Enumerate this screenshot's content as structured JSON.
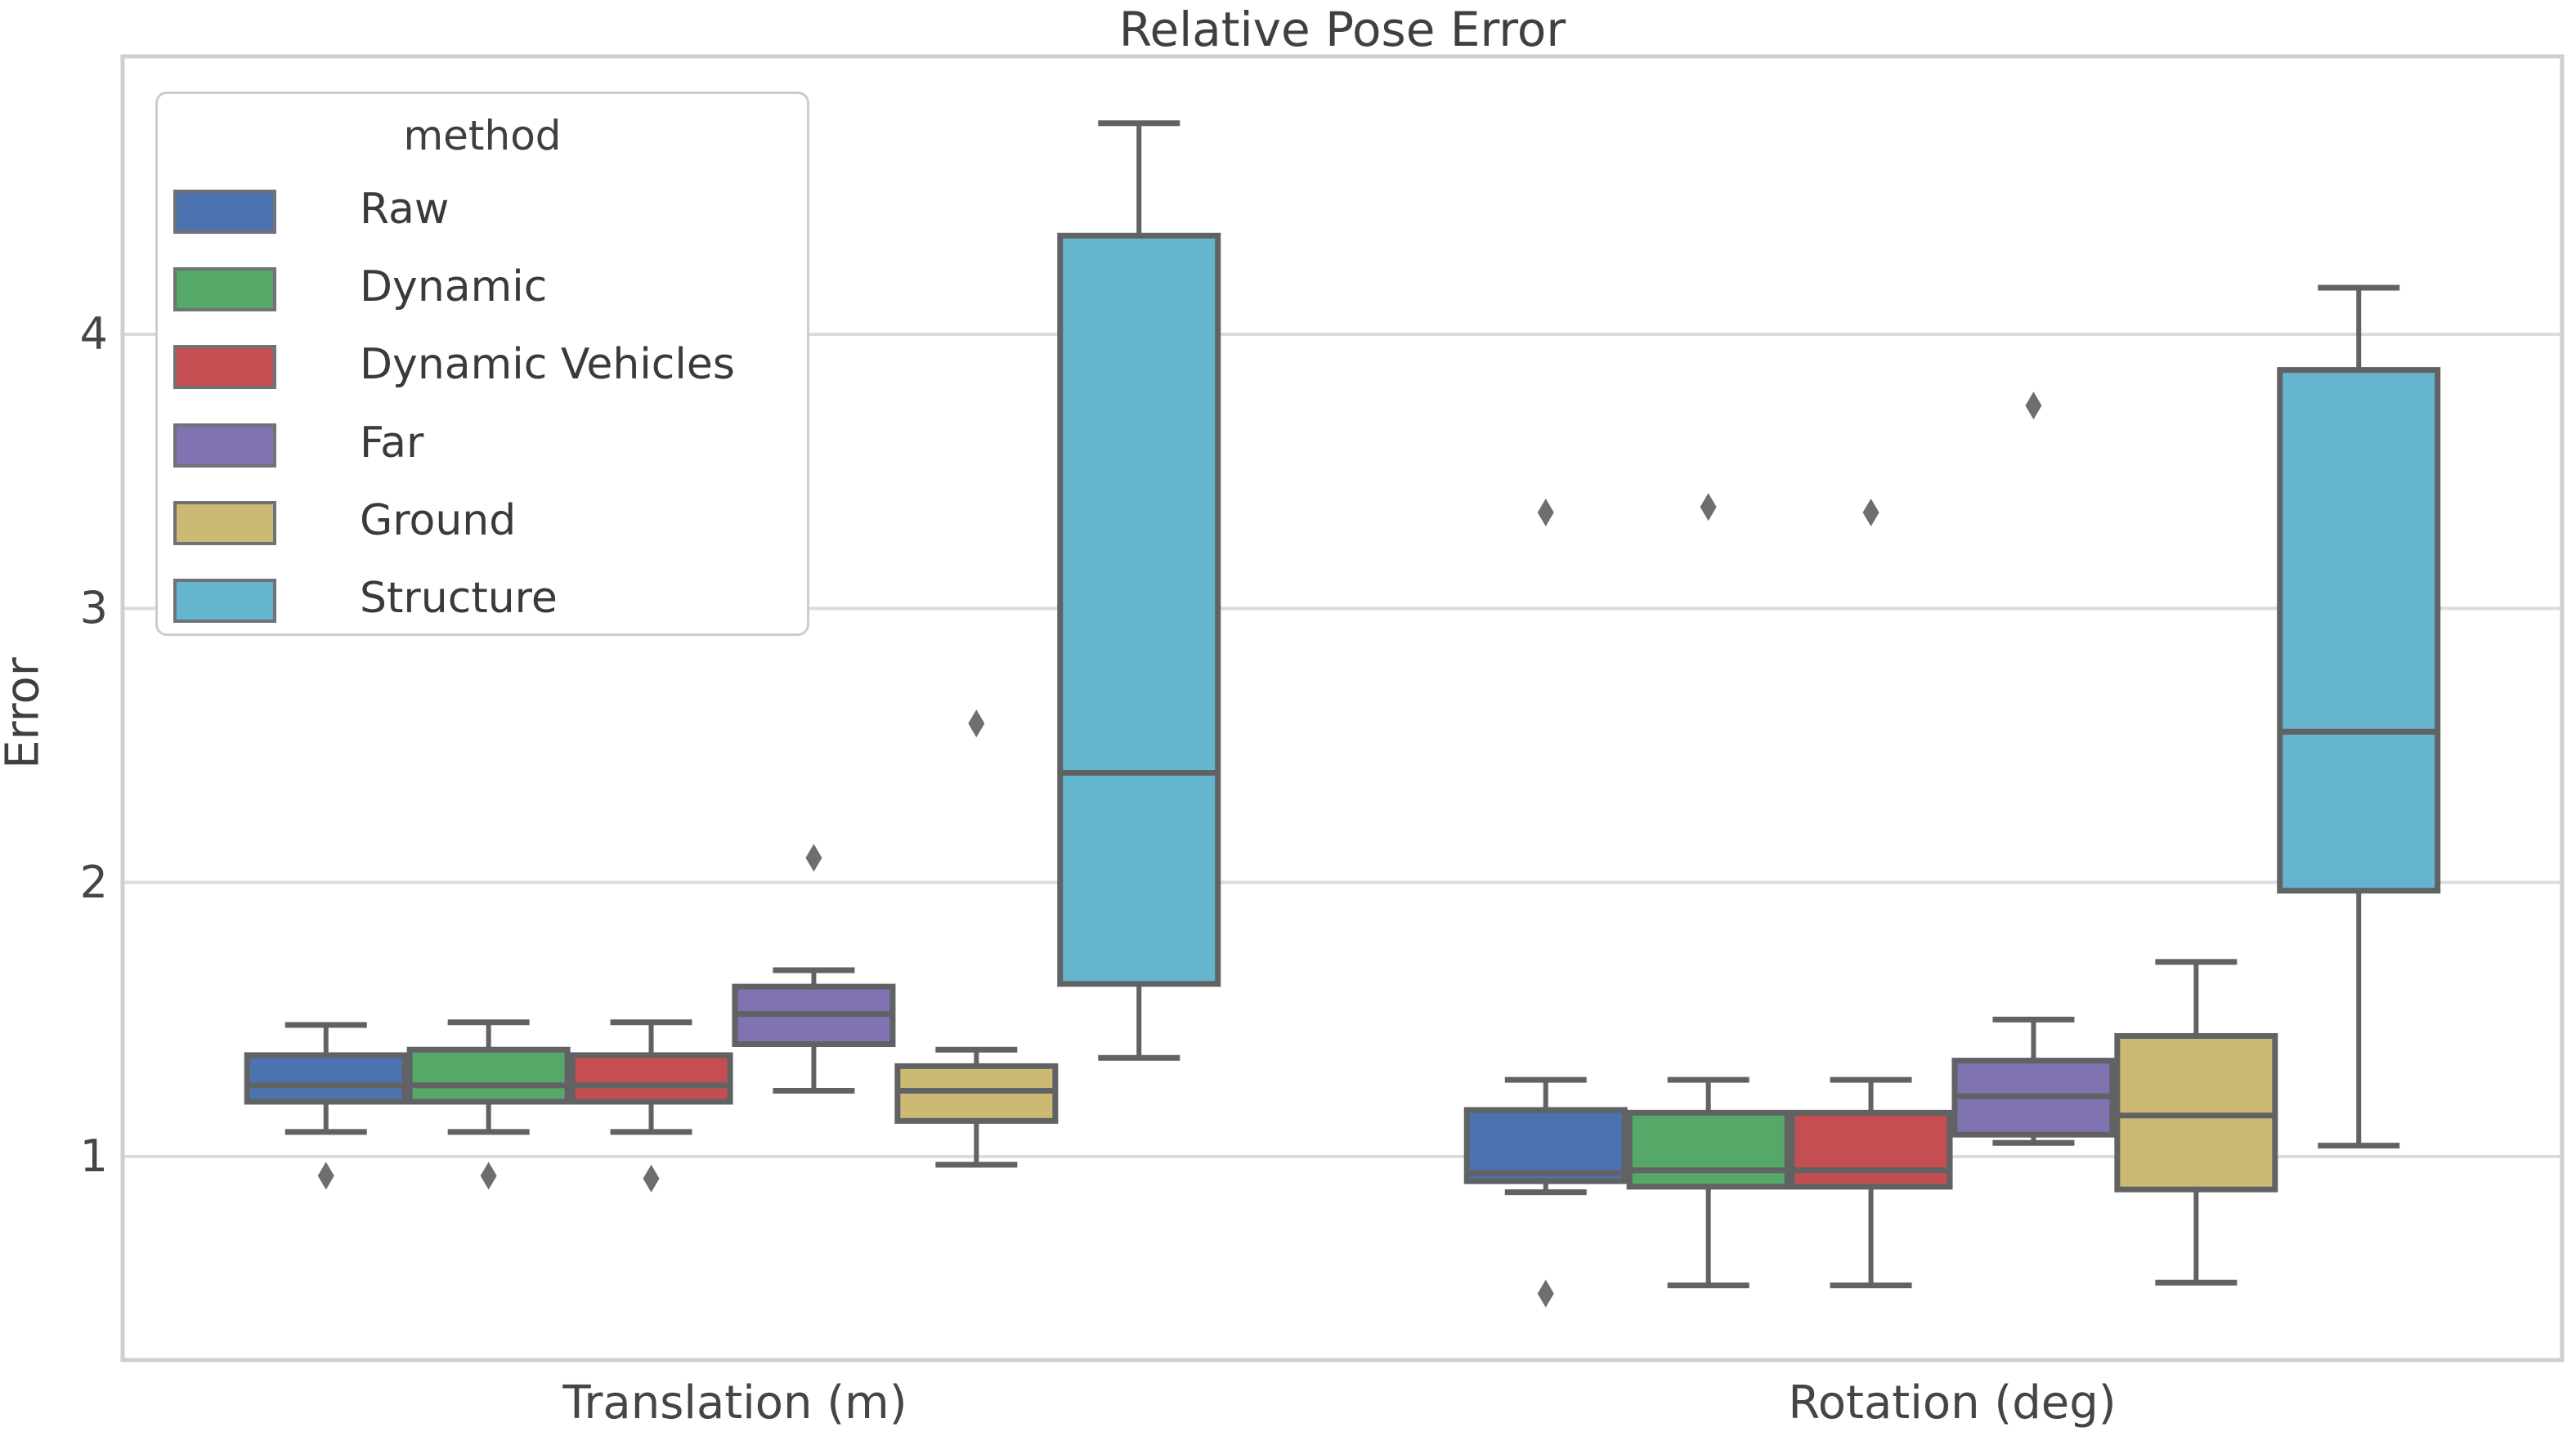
{
  "style": {
    "edge_color": "#606264",
    "flier_color": "#6e6e70",
    "grid_color": "#dcdcdc",
    "spine_color": "#cfcfd1",
    "text_color": "#3f3f3f",
    "background": "#ffffff"
  },
  "legend": {
    "title": "method",
    "items": [
      {
        "label": "Raw",
        "color": "#4C72B0"
      },
      {
        "label": "Dynamic",
        "color": "#55A868"
      },
      {
        "label": "Dynamic Vehicles",
        "color": "#C44E52"
      },
      {
        "label": "Far",
        "color": "#8172B2"
      },
      {
        "label": "Ground",
        "color": "#CCB974"
      },
      {
        "label": "Structure",
        "color": "#64B5CD"
      }
    ]
  },
  "chart_data": {
    "type": "boxplot",
    "title": "Relative Pose Error",
    "xlabel": "",
    "ylabel": "Error",
    "categories": [
      "Translation (m)",
      "Rotation (deg)"
    ],
    "yticks": [
      1,
      2,
      3,
      4
    ],
    "ylim": [
      0.26,
      5.01
    ],
    "grid": "horizontal",
    "legend_position": "upper-left",
    "series": [
      {
        "name": "Raw",
        "color": "#4C72B0",
        "boxes": [
          {
            "whislo": 1.09,
            "q1": 1.2,
            "med": 1.26,
            "q3": 1.37,
            "whishi": 1.48,
            "fliers": [
              0.93
            ]
          },
          {
            "whislo": 0.87,
            "q1": 0.91,
            "med": 0.94,
            "q3": 1.17,
            "whishi": 1.28,
            "fliers": [
              0.5,
              3.35
            ]
          }
        ]
      },
      {
        "name": "Dynamic",
        "color": "#55A868",
        "boxes": [
          {
            "whislo": 1.09,
            "q1": 1.2,
            "med": 1.26,
            "q3": 1.39,
            "whishi": 1.49,
            "fliers": [
              0.93
            ]
          },
          {
            "whislo": 0.53,
            "q1": 0.89,
            "med": 0.95,
            "q3": 1.16,
            "whishi": 1.28,
            "fliers": [
              3.37
            ]
          }
        ]
      },
      {
        "name": "Dynamic Vehicles",
        "color": "#C44E52",
        "boxes": [
          {
            "whislo": 1.09,
            "q1": 1.2,
            "med": 1.26,
            "q3": 1.37,
            "whishi": 1.49,
            "fliers": [
              0.92
            ]
          },
          {
            "whislo": 0.53,
            "q1": 0.89,
            "med": 0.95,
            "q3": 1.16,
            "whishi": 1.28,
            "fliers": [
              3.35
            ]
          }
        ]
      },
      {
        "name": "Far",
        "color": "#8172B2",
        "boxes": [
          {
            "whislo": 1.24,
            "q1": 1.41,
            "med": 1.52,
            "q3": 1.62,
            "whishi": 1.68,
            "fliers": [
              2.09
            ]
          },
          {
            "whislo": 1.05,
            "q1": 1.08,
            "med": 1.22,
            "q3": 1.35,
            "whishi": 1.5,
            "fliers": [
              3.74
            ]
          }
        ]
      },
      {
        "name": "Ground",
        "color": "#CCB974",
        "boxes": [
          {
            "whislo": 0.97,
            "q1": 1.13,
            "med": 1.24,
            "q3": 1.33,
            "whishi": 1.39,
            "fliers": [
              2.58
            ]
          },
          {
            "whislo": 0.54,
            "q1": 0.88,
            "med": 1.15,
            "q3": 1.44,
            "whishi": 1.71,
            "fliers": []
          }
        ]
      },
      {
        "name": "Structure",
        "color": "#64B5CD",
        "boxes": [
          {
            "whislo": 1.36,
            "q1": 1.63,
            "med": 2.4,
            "q3": 4.36,
            "whishi": 4.77,
            "fliers": []
          },
          {
            "whislo": 1.04,
            "q1": 1.97,
            "med": 2.55,
            "q3": 3.87,
            "whishi": 4.17,
            "fliers": []
          }
        ]
      }
    ]
  }
}
